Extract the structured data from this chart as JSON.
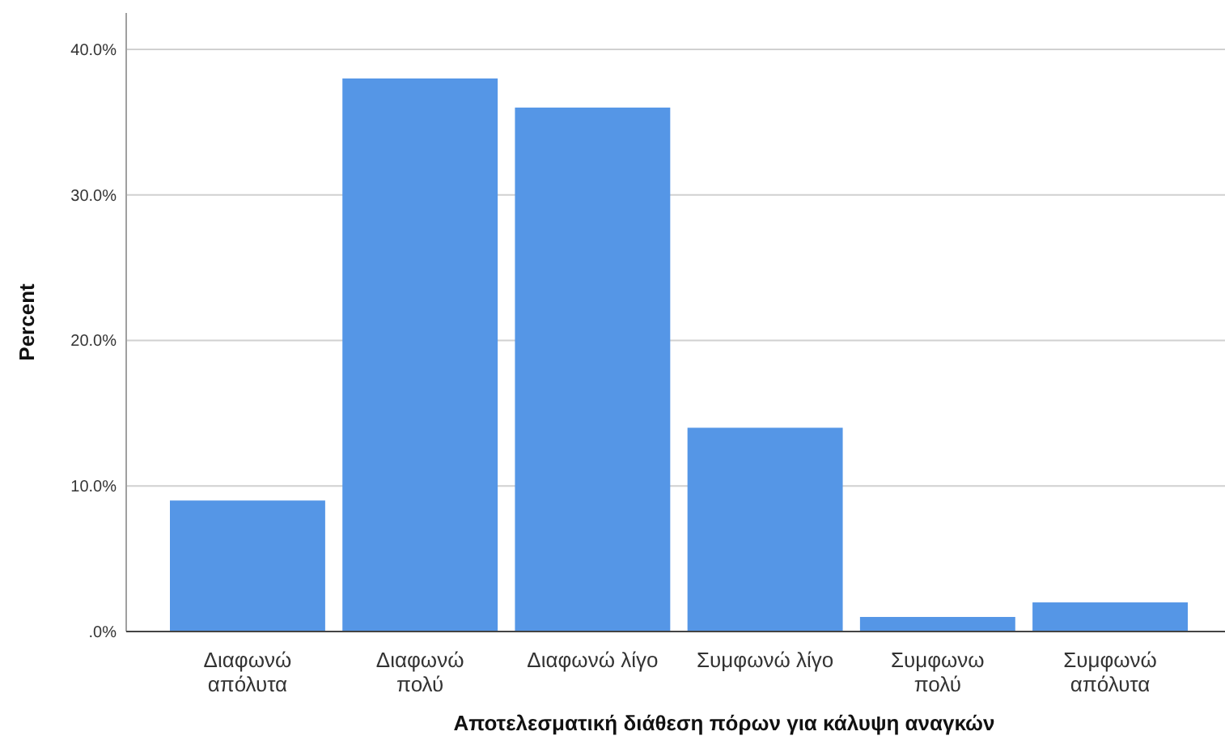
{
  "chart_data": {
    "type": "bar",
    "xlabel": "Αποτελεσματική διάθεση πόρων για κάλυψη αναγκών",
    "ylabel": "Percent",
    "categories": [
      "Διαφωνώ\nαπόλυτα",
      "Διαφωνώ\nπολύ",
      "Διαφωνώ λίγο",
      "Συμφωνώ λίγο",
      "Συμφωνω\nπολύ",
      "Συμφωνώ\nαπόλυτα"
    ],
    "values": [
      9.0,
      38.0,
      36.0,
      14.0,
      1.0,
      2.0
    ],
    "color": "#5596e6",
    "ylim": [
      0,
      42.5
    ],
    "yticks": [
      {
        "value": 0,
        "label": ".0%"
      },
      {
        "value": 10,
        "label": "10.0%"
      },
      {
        "value": 20,
        "label": "20.0%"
      },
      {
        "value": 30,
        "label": "30.0%"
      },
      {
        "value": 40,
        "label": "40.0%"
      }
    ],
    "grid": "y"
  }
}
